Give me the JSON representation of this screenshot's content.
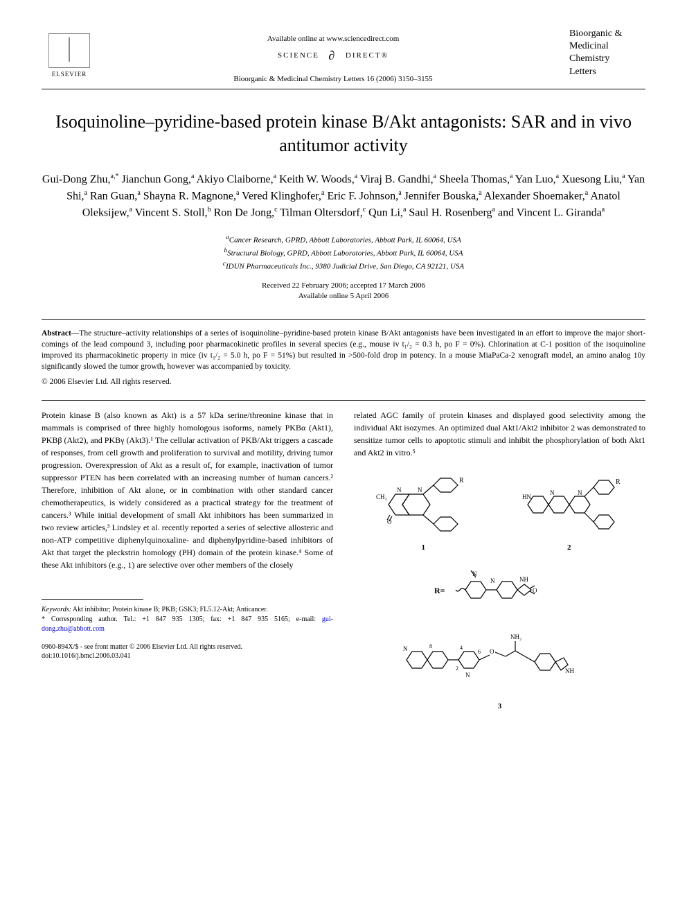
{
  "header": {
    "publisher": "ELSEVIER",
    "available_online": "Available online at www.sciencedirect.com",
    "sciencedirect_left": "SCIENCE",
    "sciencedirect_right": "DIRECT®",
    "journal_ref": "Bioorganic & Medicinal Chemistry Letters 16 (2006) 3150–3155",
    "journal_name_line1": "Bioorganic &",
    "journal_name_line2": "Medicinal",
    "journal_name_line3": "Chemistry",
    "journal_name_line4": "Letters"
  },
  "title": "Isoquinoline–pyridine-based protein kinase B/Akt antagonists: SAR and in vivo antitumor activity",
  "authors_html": "Gui-Dong Zhu,<sup>a,*</sup> Jianchun Gong,<sup>a</sup> Akiyo Claiborne,<sup>a</sup> Keith W. Woods,<sup>a</sup> Viraj B. Gandhi,<sup>a</sup> Sheela Thomas,<sup>a</sup> Yan Luo,<sup>a</sup> Xuesong Liu,<sup>a</sup> Yan Shi,<sup>a</sup> Ran Guan,<sup>a</sup> Shayna R. Magnone,<sup>a</sup> Vered Klinghofer,<sup>a</sup> Eric F. Johnson,<sup>a</sup> Jennifer Bouska,<sup>a</sup> Alexander Shoemaker,<sup>a</sup> Anatol Oleksijew,<sup>a</sup> Vincent S. Stoll,<sup>b</sup> Ron De Jong,<sup>c</sup> Tilman Oltersdorf,<sup>c</sup> Qun Li,<sup>a</sup> Saul H. Rosenberg<sup>a</sup> and Vincent L. Giranda<sup>a</sup>",
  "affiliations": {
    "a": "Cancer Research, GPRD, Abbott Laboratories, Abbott Park, IL 60064, USA",
    "b": "Structural Biology, GPRD, Abbott Laboratories, Abbott Park, IL 60064, USA",
    "c": "IDUN Pharmaceuticals Inc., 9380 Judicial Drive, San Diego, CA 92121, USA"
  },
  "dates": {
    "received_accepted": "Received 22 February 2006; accepted 17 March 2006",
    "available": "Available online 5 April 2006"
  },
  "abstract": {
    "label": "Abstract",
    "text": "—The structure–activity relationships of a series of isoquinoline–pyridine-based protein kinase B/Akt antagonists have been investigated in an effort to improve the major short-comings of the lead compound 3, including poor pharmacokinetic profiles in several species (e.g., mouse iv t₁/₂ = 0.3 h, po F = 0%). Chlorination at C-1 position of the isoquinoline improved its pharmacokinetic property in mice (iv t₁/₂ = 5.0 h, po F = 51%) but resulted in >500-fold drop in potency. In a mouse MiaPaCa-2 xenograft model, an amino analog 10y significantly slowed the tumor growth, however was accompanied by toxicity.",
    "copyright": "© 2006 Elsevier Ltd. All rights reserved."
  },
  "body": {
    "left_col": "Protein kinase B (also known as Akt) is a 57 kDa serine/threonine kinase that in mammals is comprised of three highly homologous isoforms, namely PKBα (Akt1), PKBβ (Akt2), and PKBγ (Akt3).¹ The cellular activation of PKB/Akt triggers a cascade of responses, from cell growth and proliferation to survival and motility, driving tumor progression. Overexpression of Akt as a result of, for example, inactivation of tumor suppressor PTEN has been correlated with an increasing number of human cancers.² Therefore, inhibition of Akt alone, or in combination with other standard cancer chemotherapeutics, is widely considered as a practical strategy for the treatment of cancers.³ While initial development of small Akt inhibitors has been summarized in two review articles,³ Lindsley et al. recently reported a series of selective allosteric and non-ATP competitive diphenylquinoxaline- and diphenylpyridine-based inhibitors of Akt that target the pleckstrin homology (PH) domain of the protein kinase.⁴ Some of these Akt inhibitors (e.g., 1) are selective over other members of the closely",
    "right_col": "related AGC family of protein kinases and displayed good selectivity among the individual Akt isozymes. An optimized dual Akt1/Akt2 inhibitor 2 was demonstrated to sensitize tumor cells to apoptotic stimuli and inhibit the phosphorylation of both Akt1 and Akt2 in vitro.⁵"
  },
  "chem": {
    "compound_1": "1",
    "compound_2": "2",
    "compound_3": "3",
    "r_label": "R=",
    "ch3_label": "CH₃",
    "nh2_label": "NH₂",
    "o_label": "O",
    "n_label": "N",
    "hn_label": "HN",
    "nh_label": "NH"
  },
  "footer": {
    "keywords_label": "Keywords:",
    "keywords": "Akt inhibitor; Protein kinase B; PKB; GSK3; FL5.12-Akt; Anticancer.",
    "corresponding_label": "* Corresponding author.",
    "corresponding_contact": "Tel.: +1 847 935 1305; fax: +1 847 935 5165; e-mail:",
    "email": "gui-dong.zhu@abbott.com",
    "copyright_line": "0960-894X/$ - see front matter © 2006 Elsevier Ltd. All rights reserved.",
    "doi": "doi:10.1016/j.bmcl.2006.03.041"
  },
  "colors": {
    "text": "#000000",
    "background": "#ffffff",
    "link": "#0000cc",
    "logo_border": "#888888"
  },
  "typography": {
    "title_fontsize": 26,
    "authors_fontsize": 16,
    "body_fontsize": 12,
    "abstract_fontsize": 11.5,
    "footer_fontsize": 10,
    "affiliations_fontsize": 11
  }
}
